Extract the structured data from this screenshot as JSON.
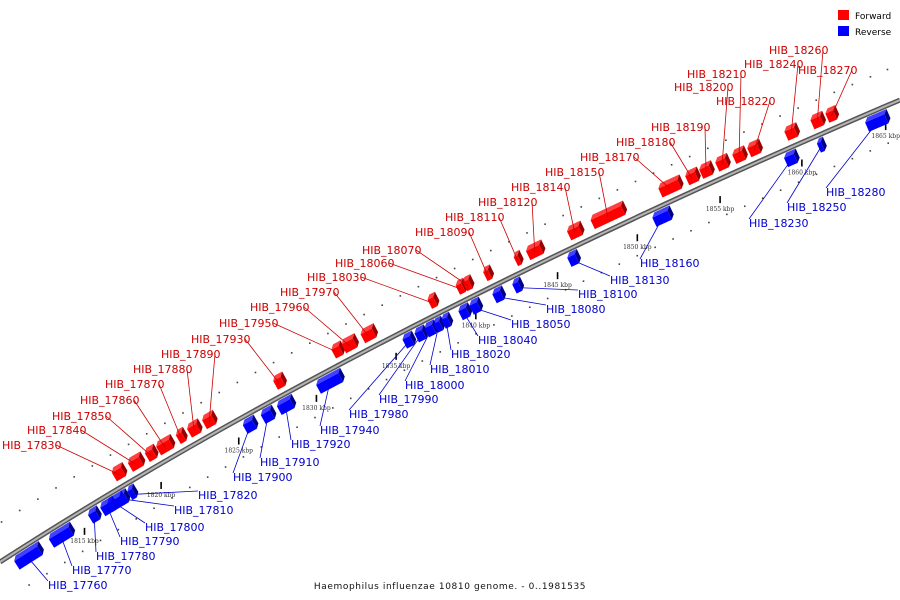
{
  "caption": "Haemophilus influenzae 10810 genome. - 0..1981535",
  "legend": {
    "forward": {
      "label": "Forward",
      "color": "#ff0000"
    },
    "reverse": {
      "label": "Reverse",
      "color": "#0000ff"
    }
  },
  "colors": {
    "axis": "#808080",
    "forward_label": "#cc0000",
    "reverse_label": "#0000cc"
  },
  "ticks": [
    "1815 kbp",
    "1820 kbp",
    "1825 kbp",
    "1830 kbp",
    "1835 kbp",
    "1840 kbp",
    "1845 kbp",
    "1850 kbp",
    "1855 kbp",
    "1860 kbp",
    "1865 kbp"
  ],
  "genes": [
    {
      "id": "HIB_17760",
      "strand": "reverse"
    },
    {
      "id": "HIB_17770",
      "strand": "reverse"
    },
    {
      "id": "HIB_17780",
      "strand": "reverse"
    },
    {
      "id": "HIB_17790",
      "strand": "reverse"
    },
    {
      "id": "HIB_17800",
      "strand": "reverse"
    },
    {
      "id": "HIB_17810",
      "strand": "reverse"
    },
    {
      "id": "HIB_17820",
      "strand": "reverse"
    },
    {
      "id": "HIB_17830",
      "strand": "forward"
    },
    {
      "id": "HIB_17840",
      "strand": "forward"
    },
    {
      "id": "HIB_17850",
      "strand": "forward"
    },
    {
      "id": "HIB_17860",
      "strand": "forward"
    },
    {
      "id": "HIB_17870",
      "strand": "forward"
    },
    {
      "id": "HIB_17880",
      "strand": "forward"
    },
    {
      "id": "HIB_17890",
      "strand": "forward"
    },
    {
      "id": "HIB_17900",
      "strand": "reverse"
    },
    {
      "id": "HIB_17910",
      "strand": "reverse"
    },
    {
      "id": "HIB_17920",
      "strand": "reverse"
    },
    {
      "id": "HIB_17930",
      "strand": "forward"
    },
    {
      "id": "HIB_17940",
      "strand": "reverse"
    },
    {
      "id": "HIB_17950",
      "strand": "forward"
    },
    {
      "id": "HIB_17960",
      "strand": "forward"
    },
    {
      "id": "HIB_17970",
      "strand": "forward"
    },
    {
      "id": "HIB_17980",
      "strand": "reverse"
    },
    {
      "id": "HIB_17990",
      "strand": "reverse"
    },
    {
      "id": "HIB_18000",
      "strand": "reverse"
    },
    {
      "id": "HIB_18010",
      "strand": "reverse"
    },
    {
      "id": "HIB_18020",
      "strand": "reverse"
    },
    {
      "id": "HIB_18030",
      "strand": "forward"
    },
    {
      "id": "HIB_18040",
      "strand": "reverse"
    },
    {
      "id": "HIB_18050",
      "strand": "reverse"
    },
    {
      "id": "HIB_18060",
      "strand": "forward"
    },
    {
      "id": "HIB_18070",
      "strand": "forward"
    },
    {
      "id": "HIB_18080",
      "strand": "reverse"
    },
    {
      "id": "HIB_18090",
      "strand": "forward"
    },
    {
      "id": "HIB_18100",
      "strand": "reverse"
    },
    {
      "id": "HIB_18110",
      "strand": "forward"
    },
    {
      "id": "HIB_18120",
      "strand": "forward"
    },
    {
      "id": "HIB_18130",
      "strand": "reverse"
    },
    {
      "id": "HIB_18140",
      "strand": "forward"
    },
    {
      "id": "HIB_18150",
      "strand": "forward"
    },
    {
      "id": "HIB_18160",
      "strand": "reverse"
    },
    {
      "id": "HIB_18170",
      "strand": "forward"
    },
    {
      "id": "HIB_18180",
      "strand": "forward"
    },
    {
      "id": "HIB_18190",
      "strand": "forward"
    },
    {
      "id": "HIB_18200",
      "strand": "forward"
    },
    {
      "id": "HIB_18210",
      "strand": "forward"
    },
    {
      "id": "HIB_18220",
      "strand": "forward"
    },
    {
      "id": "HIB_18230",
      "strand": "reverse"
    },
    {
      "id": "HIB_18240",
      "strand": "forward"
    },
    {
      "id": "HIB_18250",
      "strand": "reverse"
    },
    {
      "id": "HIB_18260",
      "strand": "forward"
    },
    {
      "id": "HIB_18270",
      "strand": "forward"
    },
    {
      "id": "HIB_18280",
      "strand": "reverse"
    }
  ]
}
